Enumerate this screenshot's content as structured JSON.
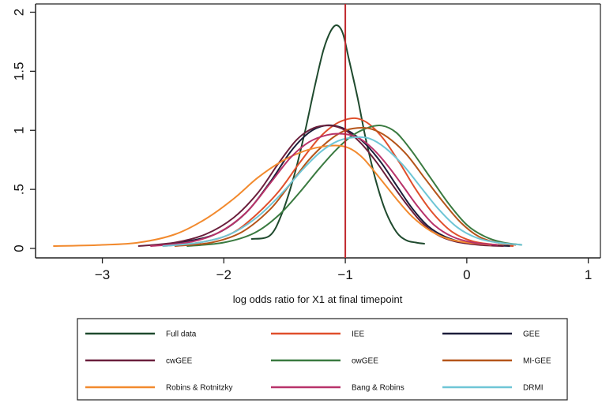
{
  "chart_data": {
    "type": "line",
    "title": "",
    "xlabel": "log odds ratio for X1 at final timepoint",
    "ylabel": "",
    "xlim": [
      -3.55,
      1.1
    ],
    "ylim": [
      -0.08,
      2.07
    ],
    "xticks": [
      -3,
      -2,
      -1,
      0,
      1
    ],
    "xtick_labels": [
      "−3",
      "−2",
      "−1",
      "0",
      "1"
    ],
    "yticks": [
      0,
      0.5,
      1,
      1.5,
      2
    ],
    "ytick_labels": [
      "0",
      ".5",
      "1",
      "1.5",
      "2"
    ],
    "grid": false,
    "reference_line": {
      "x": -1,
      "color": "#c0282d"
    },
    "legend_position": "bottom",
    "series": [
      {
        "name": "Full data",
        "color": "#1f4a2e",
        "points": [
          [
            -1.77,
            0.08
          ],
          [
            -1.62,
            0.11
          ],
          [
            -1.52,
            0.3
          ],
          [
            -1.42,
            0.62
          ],
          [
            -1.33,
            1.0
          ],
          [
            -1.25,
            1.38
          ],
          [
            -1.18,
            1.68
          ],
          [
            -1.12,
            1.84
          ],
          [
            -1.07,
            1.89
          ],
          [
            -1.02,
            1.82
          ],
          [
            -0.97,
            1.6
          ],
          [
            -0.9,
            1.28
          ],
          [
            -0.83,
            0.92
          ],
          [
            -0.75,
            0.58
          ],
          [
            -0.67,
            0.32
          ],
          [
            -0.58,
            0.14
          ],
          [
            -0.5,
            0.07
          ],
          [
            -0.42,
            0.05
          ],
          [
            -0.35,
            0.04
          ]
        ]
      },
      {
        "name": "IEE",
        "color": "#e04f2c",
        "points": [
          [
            -2.5,
            0.02
          ],
          [
            -2.2,
            0.05
          ],
          [
            -1.95,
            0.12
          ],
          [
            -1.75,
            0.27
          ],
          [
            -1.55,
            0.48
          ],
          [
            -1.38,
            0.72
          ],
          [
            -1.22,
            0.93
          ],
          [
            -1.1,
            1.04
          ],
          [
            -1.0,
            1.09
          ],
          [
            -0.9,
            1.1
          ],
          [
            -0.8,
            1.05
          ],
          [
            -0.68,
            0.92
          ],
          [
            -0.55,
            0.72
          ],
          [
            -0.42,
            0.5
          ],
          [
            -0.28,
            0.3
          ],
          [
            -0.12,
            0.14
          ],
          [
            0.05,
            0.06
          ],
          [
            0.25,
            0.03
          ],
          [
            0.38,
            0.02
          ]
        ]
      },
      {
        "name": "GEE",
        "color": "#1c1d3a",
        "points": [
          [
            -2.55,
            0.03
          ],
          [
            -2.3,
            0.06
          ],
          [
            -2.05,
            0.13
          ],
          [
            -1.82,
            0.3
          ],
          [
            -1.62,
            0.56
          ],
          [
            -1.45,
            0.82
          ],
          [
            -1.3,
            0.98
          ],
          [
            -1.17,
            1.04
          ],
          [
            -1.05,
            1.03
          ],
          [
            -0.95,
            0.98
          ],
          [
            -0.83,
            0.88
          ],
          [
            -0.7,
            0.72
          ],
          [
            -0.57,
            0.52
          ],
          [
            -0.45,
            0.34
          ],
          [
            -0.32,
            0.19
          ],
          [
            -0.18,
            0.1
          ],
          [
            -0.02,
            0.05
          ],
          [
            0.18,
            0.03
          ],
          [
            0.35,
            0.02
          ]
        ]
      },
      {
        "name": "cwGEE",
        "color": "#6a1f3c",
        "points": [
          [
            -2.7,
            0.02
          ],
          [
            -2.4,
            0.05
          ],
          [
            -2.15,
            0.12
          ],
          [
            -1.92,
            0.26
          ],
          [
            -1.72,
            0.47
          ],
          [
            -1.55,
            0.72
          ],
          [
            -1.4,
            0.92
          ],
          [
            -1.26,
            1.02
          ],
          [
            -1.12,
            1.04
          ],
          [
            -1.0,
            1.0
          ],
          [
            -0.88,
            0.9
          ],
          [
            -0.75,
            0.74
          ],
          [
            -0.62,
            0.55
          ],
          [
            -0.5,
            0.38
          ],
          [
            -0.38,
            0.23
          ],
          [
            -0.25,
            0.12
          ],
          [
            -0.1,
            0.06
          ],
          [
            0.1,
            0.03
          ],
          [
            0.3,
            0.02
          ]
        ]
      },
      {
        "name": "owGEE",
        "color": "#3a7a40",
        "points": [
          [
            -2.3,
            0.02
          ],
          [
            -2.0,
            0.05
          ],
          [
            -1.75,
            0.13
          ],
          [
            -1.55,
            0.28
          ],
          [
            -1.38,
            0.47
          ],
          [
            -1.22,
            0.67
          ],
          [
            -1.08,
            0.83
          ],
          [
            -0.95,
            0.95
          ],
          [
            -0.82,
            1.02
          ],
          [
            -0.7,
            1.04
          ],
          [
            -0.58,
            0.98
          ],
          [
            -0.45,
            0.82
          ],
          [
            -0.3,
            0.6
          ],
          [
            -0.15,
            0.38
          ],
          [
            0.0,
            0.2
          ],
          [
            0.15,
            0.1
          ],
          [
            0.3,
            0.05
          ],
          [
            0.45,
            0.03
          ]
        ]
      },
      {
        "name": "MI-GEE",
        "color": "#b5551a",
        "points": [
          [
            -2.4,
            0.02
          ],
          [
            -2.1,
            0.05
          ],
          [
            -1.85,
            0.14
          ],
          [
            -1.62,
            0.33
          ],
          [
            -1.45,
            0.55
          ],
          [
            -1.3,
            0.75
          ],
          [
            -1.15,
            0.9
          ],
          [
            -1.02,
            0.99
          ],
          [
            -0.9,
            1.02
          ],
          [
            -0.78,
            1.01
          ],
          [
            -0.65,
            0.94
          ],
          [
            -0.5,
            0.8
          ],
          [
            -0.35,
            0.6
          ],
          [
            -0.2,
            0.4
          ],
          [
            -0.05,
            0.22
          ],
          [
            0.1,
            0.1
          ],
          [
            0.25,
            0.05
          ],
          [
            0.4,
            0.03
          ]
        ]
      },
      {
        "name": "Robins & Rotnitzky",
        "color": "#f28a2e",
        "points": [
          [
            -3.4,
            0.02
          ],
          [
            -3.0,
            0.03
          ],
          [
            -2.7,
            0.05
          ],
          [
            -2.4,
            0.12
          ],
          [
            -2.15,
            0.25
          ],
          [
            -1.92,
            0.42
          ],
          [
            -1.72,
            0.6
          ],
          [
            -1.52,
            0.74
          ],
          [
            -1.35,
            0.82
          ],
          [
            -1.2,
            0.86
          ],
          [
            -1.05,
            0.87
          ],
          [
            -0.95,
            0.84
          ],
          [
            -0.85,
            0.76
          ],
          [
            -0.72,
            0.6
          ],
          [
            -0.58,
            0.42
          ],
          [
            -0.45,
            0.27
          ],
          [
            -0.3,
            0.15
          ],
          [
            -0.15,
            0.08
          ],
          [
            0.0,
            0.05
          ],
          [
            0.2,
            0.03
          ]
        ]
      },
      {
        "name": "Bang & Robins",
        "color": "#b8336a",
        "points": [
          [
            -2.6,
            0.02
          ],
          [
            -2.3,
            0.05
          ],
          [
            -2.05,
            0.13
          ],
          [
            -1.82,
            0.3
          ],
          [
            -1.62,
            0.55
          ],
          [
            -1.45,
            0.77
          ],
          [
            -1.3,
            0.9
          ],
          [
            -1.15,
            0.96
          ],
          [
            -1.02,
            0.97
          ],
          [
            -0.9,
            0.94
          ],
          [
            -0.78,
            0.85
          ],
          [
            -0.65,
            0.7
          ],
          [
            -0.52,
            0.52
          ],
          [
            -0.4,
            0.35
          ],
          [
            -0.27,
            0.2
          ],
          [
            -0.12,
            0.1
          ],
          [
            0.05,
            0.05
          ],
          [
            0.25,
            0.03
          ]
        ]
      },
      {
        "name": "DRMI",
        "color": "#6fc6d6",
        "points": [
          [
            -2.5,
            0.02
          ],
          [
            -2.2,
            0.05
          ],
          [
            -1.95,
            0.12
          ],
          [
            -1.72,
            0.27
          ],
          [
            -1.52,
            0.47
          ],
          [
            -1.35,
            0.67
          ],
          [
            -1.2,
            0.82
          ],
          [
            -1.06,
            0.91
          ],
          [
            -0.93,
            0.94
          ],
          [
            -0.8,
            0.93
          ],
          [
            -0.67,
            0.85
          ],
          [
            -0.52,
            0.7
          ],
          [
            -0.38,
            0.52
          ],
          [
            -0.23,
            0.33
          ],
          [
            -0.08,
            0.18
          ],
          [
            0.08,
            0.09
          ],
          [
            0.25,
            0.05
          ],
          [
            0.45,
            0.03
          ]
        ]
      }
    ]
  }
}
